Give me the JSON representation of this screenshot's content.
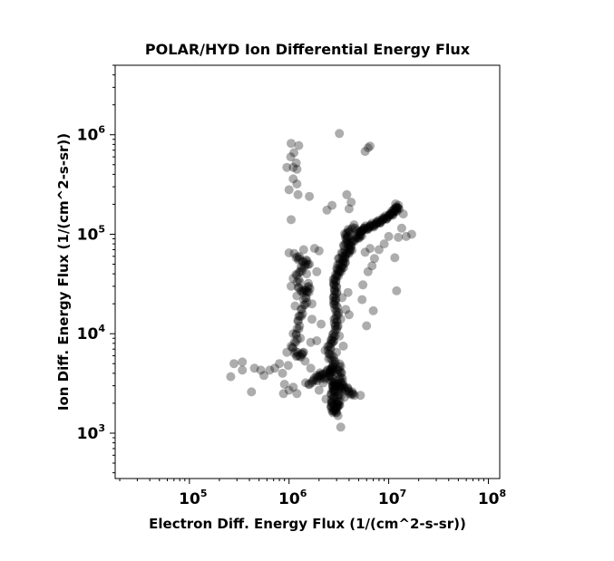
{
  "chart_data": {
    "type": "scatter",
    "title": "POLAR/HYD  Ion Differential Energy Flux",
    "xlabel": "Electron Diff. Energy Flux (1/(cm^2-s-sr))",
    "ylabel": "Ion Diff. Energy Flux (1/(cm^2-s-sr))",
    "xscale": "log",
    "yscale": "log",
    "xlim": [
      18000,
      130000000
    ],
    "ylim": [
      350,
      5000000
    ],
    "x_ticks": [
      {
        "base": "10",
        "exp": "5",
        "value": 100000
      },
      {
        "base": "10",
        "exp": "6",
        "value": 1000000
      },
      {
        "base": "10",
        "exp": "7",
        "value": 10000000
      },
      {
        "base": "10",
        "exp": "8",
        "value": 100000000
      }
    ],
    "y_ticks": [
      {
        "base": "10",
        "exp": "3",
        "value": 1000
      },
      {
        "base": "10",
        "exp": "4",
        "value": 10000
      },
      {
        "base": "10",
        "exp": "5",
        "value": 100000
      },
      {
        "base": "10",
        "exp": "6",
        "value": 1000000
      }
    ],
    "grid": false,
    "legend": "none",
    "marker_color": "#000000",
    "marker_opacity": 0.32,
    "series": [
      {
        "points": [
          [
            3200000,
            1030000
          ],
          [
            6500000,
            770000
          ],
          [
            6200000,
            740000
          ],
          [
            5800000,
            680000
          ],
          [
            1050000,
            820000
          ],
          [
            1250000,
            780000
          ],
          [
            1120000,
            660000
          ],
          [
            1040000,
            600000
          ],
          [
            1180000,
            520000
          ],
          [
            1100000,
            470000
          ],
          [
            1200000,
            450000
          ],
          [
            950000,
            470000
          ],
          [
            1100000,
            360000
          ],
          [
            1200000,
            320000
          ],
          [
            1000000,
            280000
          ],
          [
            1230000,
            250000
          ],
          [
            1600000,
            240000
          ],
          [
            1050000,
            140000
          ],
          [
            2400000,
            175000
          ],
          [
            2700000,
            195000
          ],
          [
            3800000,
            250000
          ],
          [
            4200000,
            210000
          ],
          [
            4000000,
            180000
          ],
          [
            1000000,
            65000
          ],
          [
            1400000,
            70000
          ],
          [
            1800000,
            72000
          ],
          [
            2000000,
            68000
          ],
          [
            1600000,
            50000
          ],
          [
            1900000,
            42000
          ],
          [
            1500000,
            40000
          ],
          [
            1100000,
            36000
          ],
          [
            1050000,
            30000
          ],
          [
            1200000,
            24000
          ],
          [
            1400000,
            22000
          ],
          [
            1700000,
            20000
          ],
          [
            1150000,
            19000
          ],
          [
            1250000,
            15000
          ],
          [
            1700000,
            14000
          ],
          [
            2100000,
            12500
          ],
          [
            1100000,
            10000
          ],
          [
            1300000,
            9000
          ],
          [
            1050000,
            7500
          ],
          [
            950000,
            6500
          ],
          [
            1350000,
            6200
          ],
          [
            1650000,
            8200
          ],
          [
            1900000,
            8500
          ],
          [
            260000,
            3700
          ],
          [
            280000,
            5000
          ],
          [
            340000,
            5200
          ],
          [
            340000,
            4300
          ],
          [
            420000,
            2600
          ],
          [
            450000,
            4500
          ],
          [
            520000,
            4300
          ],
          [
            560000,
            3800
          ],
          [
            640000,
            4300
          ],
          [
            720000,
            4500
          ],
          [
            800000,
            5000
          ],
          [
            860000,
            4000
          ],
          [
            900000,
            3100
          ],
          [
            1000000,
            2700
          ],
          [
            1100000,
            2900
          ],
          [
            1200000,
            2500
          ],
          [
            880000,
            2500
          ],
          [
            980000,
            4800
          ],
          [
            1450000,
            5300
          ],
          [
            1650000,
            4500
          ],
          [
            1800000,
            3600
          ],
          [
            2100000,
            3900
          ],
          [
            2200000,
            3200
          ],
          [
            2000000,
            2700
          ],
          [
            2350000,
            2200
          ],
          [
            2700000,
            2000
          ],
          [
            3000000,
            1800
          ],
          [
            3100000,
            1500
          ],
          [
            3300000,
            1150
          ],
          [
            3600000,
            2300
          ],
          [
            4300000,
            2500
          ],
          [
            5200000,
            2400
          ],
          [
            3900000,
            2800
          ],
          [
            2500000,
            5600
          ],
          [
            3000000,
            6500
          ],
          [
            3500000,
            7500
          ],
          [
            2300000,
            6800
          ],
          [
            2800000,
            8400
          ],
          [
            3200000,
            9500
          ],
          [
            3100000,
            12000
          ],
          [
            3300000,
            14000
          ],
          [
            4000000,
            15500
          ],
          [
            3700000,
            17500
          ],
          [
            2900000,
            21000
          ],
          [
            3400000,
            23000
          ],
          [
            3900000,
            26000
          ],
          [
            5400000,
            22000
          ],
          [
            5500000,
            31000
          ],
          [
            6200000,
            42000
          ],
          [
            6800000,
            48000
          ],
          [
            7200000,
            57000
          ],
          [
            5800000,
            66000
          ],
          [
            6500000,
            72000
          ],
          [
            8000000,
            70000
          ],
          [
            9000000,
            80000
          ],
          [
            10000000,
            95000
          ],
          [
            11500000,
            58000
          ],
          [
            12500000,
            93000
          ],
          [
            15000000,
            95000
          ],
          [
            17000000,
            100000
          ],
          [
            14000000,
            160000
          ],
          [
            13500000,
            115000
          ],
          [
            12000000,
            27000
          ],
          [
            6000000,
            12000
          ],
          [
            7000000,
            17000
          ]
        ],
        "trajectories": [
          [
            [
              4500000,
              2400
            ],
            [
              4000000,
              2600
            ],
            [
              3600000,
              2900
            ],
            [
              3200000,
              3000
            ],
            [
              2900000,
              3100
            ],
            [
              2800000,
              2900
            ],
            [
              2700000,
              2400
            ],
            [
              2750000,
              2000
            ],
            [
              2700000,
              1800
            ],
            [
              2850000,
              1600
            ],
            [
              3100000,
              1900
            ],
            [
              2900000,
              2500
            ],
            [
              2800000,
              3200
            ],
            [
              2600000,
              3600
            ],
            [
              2700000,
              4300
            ],
            [
              2900000,
              5200
            ],
            [
              2600000,
              6000
            ],
            [
              2500000,
              7200
            ],
            [
              2700000,
              8300
            ],
            [
              2800000,
              9500
            ],
            [
              3000000,
              11500
            ],
            [
              2900000,
              13500
            ],
            [
              3100000,
              16000
            ],
            [
              2900000,
              19000
            ],
            [
              2850000,
              22500
            ],
            [
              2950000,
              26000
            ],
            [
              2900000,
              30000
            ],
            [
              2850000,
              34000
            ],
            [
              3000000,
              38000
            ],
            [
              3200000,
              42000
            ],
            [
              3400000,
              46000
            ],
            [
              3600000,
              52000
            ],
            [
              3500000,
              58000
            ],
            [
              3800000,
              64000
            ],
            [
              4200000,
              69000
            ],
            [
              4000000,
              76000
            ],
            [
              4300000,
              85000
            ],
            [
              4800000,
              92000
            ],
            [
              5300000,
              96000
            ],
            [
              4900000,
              106000
            ],
            [
              5800000,
              112000
            ],
            [
              6700000,
              118000
            ],
            [
              7800000,
              130000
            ],
            [
              9000000,
              142000
            ],
            [
              10500000,
              155000
            ],
            [
              11500000,
              170000
            ],
            [
              12500000,
              180000
            ],
            [
              12000000,
              195000
            ],
            [
              11000000,
              165000
            ],
            [
              9500000,
              148000
            ],
            [
              8200000,
              134000
            ],
            [
              7000000,
              125000
            ],
            [
              6000000,
              117000
            ],
            [
              5300000,
              108000
            ]
          ],
          [
            [
              4600000,
              120000
            ],
            [
              4000000,
              108000
            ],
            [
              3700000,
              98000
            ],
            [
              3900000,
              88000
            ],
            [
              3600000,
              75000
            ],
            [
              3200000,
              55000
            ],
            [
              3050000,
              44000
            ]
          ],
          [
            [
              3100000,
              1800
            ],
            [
              3300000,
              2700
            ],
            [
              3400000,
              3500
            ],
            [
              3100000,
              4200
            ],
            [
              3300000,
              4800
            ],
            [
              3200000,
              2300
            ],
            [
              3000000,
              1600
            ]
          ],
          [
            [
              1500000,
              3100
            ],
            [
              1800000,
              3300
            ],
            [
              2100000,
              3900
            ],
            [
              2500000,
              4200
            ],
            [
              2800000,
              4600
            ],
            [
              2300000,
              3500
            ],
            [
              1900000,
              3800
            ]
          ],
          [
            [
              1150000,
              62000
            ],
            [
              1300000,
              55000
            ],
            [
              1550000,
              52000
            ],
            [
              1350000,
              45000
            ],
            [
              1200000,
              38000
            ],
            [
              1280000,
              28000
            ],
            [
              1450000,
              26000
            ],
            [
              1600000,
              31000
            ],
            [
              1500000,
              22000
            ],
            [
              1350000,
              17000
            ],
            [
              1250000,
              13000
            ],
            [
              1200000,
              9500
            ],
            [
              1100000,
              7000
            ],
            [
              1250000,
              5800
            ],
            [
              1400000,
              6500
            ]
          ]
        ]
      }
    ]
  }
}
